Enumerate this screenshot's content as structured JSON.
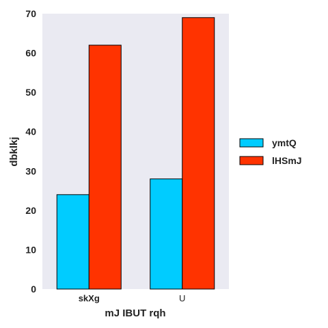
{
  "chart_data": {
    "type": "bar",
    "categories": [
      "skXg",
      "U"
    ],
    "category_styles": [
      "bold",
      "normal"
    ],
    "series": [
      {
        "name": "ymtQ",
        "values": [
          24,
          28
        ],
        "color": "#00ccff"
      },
      {
        "name": "lHSmJ",
        "values": [
          62,
          69
        ],
        "color": "#ff3300"
      }
    ],
    "xlabel": "mJ IBUT rqh",
    "ylabel": "dbklkj",
    "ylim": [
      0,
      70
    ],
    "yticks": [
      "0",
      "10",
      "20",
      "30",
      "40",
      "50",
      "60",
      "70"
    ],
    "grid": false,
    "legend_position": "right",
    "plot_background": "#eaeaf2",
    "bar_edge_color": "#000000"
  }
}
